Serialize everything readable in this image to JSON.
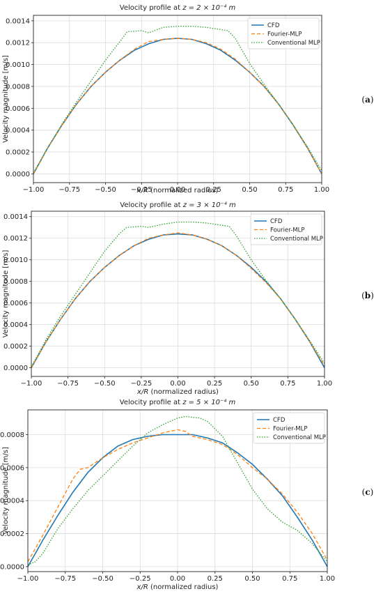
{
  "chart_data": [
    {
      "type": "line",
      "panel_label": "(a)",
      "title_prefix": "Velocity profile at ",
      "title_math": "z = 2 × 10⁻⁴ m",
      "xlabel_math": "x/R",
      "xlabel_rest": " (normalized radius)",
      "ylabel": "Velocity magnitude [m/s]",
      "xlim": [
        -1.0,
        1.0
      ],
      "ylim": [
        -8e-05,
        0.00145
      ],
      "xticks": [
        -1.0,
        -0.75,
        -0.5,
        -0.25,
        0.0,
        0.25,
        0.5,
        0.75,
        1.0
      ],
      "xtick_labels": [
        "−1.00",
        "−0.75",
        "−0.50",
        "−0.25",
        "0.00",
        "0.25",
        "0.50",
        "0.75",
        "1.00"
      ],
      "yticks": [
        0,
        0.0002,
        0.0004,
        0.0006,
        0.0008,
        0.001,
        0.0012,
        0.0014
      ],
      "ytick_labels": [
        "0.0000",
        "0.0002",
        "0.0004",
        "0.0006",
        "0.0008",
        "0.0010",
        "0.0012",
        "0.0014"
      ],
      "grid": true,
      "legend": "top-right",
      "series": [
        {
          "name": "CFD",
          "color": "#1f77b4",
          "style": "solid",
          "x": [
            -1.0,
            -0.9,
            -0.8,
            -0.7,
            -0.6,
            -0.5,
            -0.4,
            -0.3,
            -0.2,
            -0.1,
            0.0,
            0.1,
            0.2,
            0.3,
            0.4,
            0.5,
            0.6,
            0.7,
            0.8,
            0.9,
            1.0
          ],
          "y": [
            0.0,
            0.00024,
            0.00045,
            0.00064,
            0.0008,
            0.00093,
            0.00104,
            0.00113,
            0.00119,
            0.00123,
            0.00124,
            0.00123,
            0.00119,
            0.00113,
            0.00104,
            0.00093,
            0.0008,
            0.00064,
            0.00045,
            0.00024,
            0.0
          ]
        },
        {
          "name": "Fourier-MLP",
          "color": "#ff7f0e",
          "style": "dashed",
          "x": [
            -1.0,
            -0.9,
            -0.8,
            -0.7,
            -0.6,
            -0.5,
            -0.4,
            -0.3,
            -0.2,
            -0.1,
            0.0,
            0.1,
            0.2,
            0.3,
            0.4,
            0.5,
            0.6,
            0.7,
            0.8,
            0.9,
            1.0
          ],
          "y": [
            0.0,
            0.00024,
            0.00045,
            0.00064,
            0.0008,
            0.00093,
            0.00104,
            0.00114,
            0.00121,
            0.00123,
            0.00124,
            0.00123,
            0.0012,
            0.00114,
            0.00105,
            0.00093,
            0.0008,
            0.00064,
            0.00045,
            0.00024,
            0.0
          ]
        },
        {
          "name": "Conventional MLP",
          "color": "#2ca02c",
          "style": "dotted",
          "x": [
            -1.0,
            -0.9,
            -0.8,
            -0.7,
            -0.6,
            -0.5,
            -0.4,
            -0.35,
            -0.25,
            -0.2,
            -0.1,
            0.0,
            0.1,
            0.2,
            0.25,
            0.35,
            0.4,
            0.5,
            0.6,
            0.7,
            0.8,
            0.9,
            1.0
          ],
          "y": [
            1e-05,
            0.00024,
            0.00046,
            0.00066,
            0.00085,
            0.00104,
            0.00121,
            0.0013,
            0.00131,
            0.00129,
            0.00134,
            0.00135,
            0.00135,
            0.00134,
            0.00133,
            0.00131,
            0.00124,
            0.00101,
            0.00082,
            0.00064,
            0.00045,
            0.00025,
            3e-05
          ]
        }
      ]
    },
    {
      "type": "line",
      "panel_label": "(b)",
      "title_prefix": "Velocity profile at ",
      "title_math": "z = 3 × 10⁻⁴ m",
      "xlabel_math": "x/R",
      "xlabel_rest": " (normalized radius)",
      "ylabel": "Velocity magnitude [m/s]",
      "xlim": [
        -1.0,
        1.0
      ],
      "ylim": [
        -8e-05,
        0.00145
      ],
      "xticks": [
        -1.0,
        -0.75,
        -0.5,
        -0.25,
        0.0,
        0.25,
        0.5,
        0.75,
        1.0
      ],
      "xtick_labels": [
        "−1.00",
        "−0.75",
        "−0.50",
        "−0.25",
        "0.00",
        "0.25",
        "0.50",
        "0.75",
        "1.00"
      ],
      "yticks": [
        0,
        0.0002,
        0.0004,
        0.0006,
        0.0008,
        0.001,
        0.0012,
        0.0014
      ],
      "ytick_labels": [
        "0.0000",
        "0.0002",
        "0.0004",
        "0.0006",
        "0.0008",
        "0.0010",
        "0.0012",
        "0.0014"
      ],
      "grid": true,
      "legend": "top-right",
      "series": [
        {
          "name": "CFD",
          "color": "#1f77b4",
          "style": "solid",
          "x": [
            -1.0,
            -0.9,
            -0.8,
            -0.7,
            -0.6,
            -0.5,
            -0.4,
            -0.3,
            -0.2,
            -0.1,
            0.0,
            0.1,
            0.2,
            0.3,
            0.4,
            0.5,
            0.6,
            0.7,
            0.8,
            0.9,
            1.0
          ],
          "y": [
            0.0,
            0.00024,
            0.00045,
            0.00064,
            0.0008,
            0.00093,
            0.00104,
            0.00113,
            0.00119,
            0.00123,
            0.00124,
            0.00123,
            0.00119,
            0.00113,
            0.00104,
            0.00093,
            0.0008,
            0.00064,
            0.00045,
            0.00024,
            0.0
          ]
        },
        {
          "name": "Fourier-MLP",
          "color": "#ff7f0e",
          "style": "dashed",
          "x": [
            -1.0,
            -0.9,
            -0.8,
            -0.7,
            -0.6,
            -0.5,
            -0.4,
            -0.3,
            -0.2,
            -0.1,
            0.0,
            0.1,
            0.2,
            0.3,
            0.4,
            0.5,
            0.6,
            0.7,
            0.8,
            0.9,
            1.0
          ],
          "y": [
            0.0,
            0.00024,
            0.00045,
            0.00064,
            0.0008,
            0.00093,
            0.00104,
            0.00113,
            0.0012,
            0.00123,
            0.00125,
            0.00123,
            0.00119,
            0.00113,
            0.00104,
            0.00092,
            0.00079,
            0.00064,
            0.00045,
            0.00024,
            2e-05
          ]
        },
        {
          "name": "Conventional MLP",
          "color": "#2ca02c",
          "style": "dotted",
          "x": [
            -1.0,
            -0.9,
            -0.8,
            -0.7,
            -0.6,
            -0.5,
            -0.4,
            -0.35,
            -0.25,
            -0.2,
            -0.1,
            0.0,
            0.1,
            0.2,
            0.25,
            0.35,
            0.4,
            0.5,
            0.6,
            0.7,
            0.8,
            0.9,
            1.0
          ],
          "y": [
            1e-05,
            0.00026,
            0.00048,
            0.00068,
            0.00088,
            0.00108,
            0.00124,
            0.0013,
            0.00131,
            0.0013,
            0.00133,
            0.00135,
            0.00135,
            0.00134,
            0.00133,
            0.00131,
            0.00122,
            0.001,
            0.00081,
            0.00064,
            0.00045,
            0.00025,
            4e-05
          ]
        }
      ]
    },
    {
      "type": "line",
      "panel_label": "(c)",
      "title_prefix": "Velocity profile at ",
      "title_math": "z = 5 × 10⁻⁴ m",
      "xlabel_math": "x/R",
      "xlabel_rest": " (normalized radius)",
      "ylabel": "Velocity magnitude [m/s]",
      "xlim": [
        -1.0,
        1.0
      ],
      "ylim": [
        -3e-05,
        0.00095
      ],
      "xticks": [
        -1.0,
        -0.75,
        -0.5,
        -0.25,
        0.0,
        0.25,
        0.5,
        0.75,
        1.0
      ],
      "xtick_labels": [
        "−1.00",
        "−0.75",
        "−0.50",
        "−0.25",
        "0.00",
        "0.25",
        "0.50",
        "0.75",
        "1.00"
      ],
      "yticks": [
        0,
        0.0002,
        0.0004,
        0.0006,
        0.0008
      ],
      "ytick_labels": [
        "0.0000",
        "0.0002",
        "0.0004",
        "0.0006",
        "0.0008"
      ],
      "grid": true,
      "legend": "top-right",
      "series": [
        {
          "name": "CFD",
          "color": "#1f77b4",
          "style": "solid",
          "x": [
            -1.0,
            -0.9,
            -0.8,
            -0.7,
            -0.6,
            -0.5,
            -0.4,
            -0.3,
            -0.2,
            -0.1,
            0.0,
            0.1,
            0.2,
            0.3,
            0.4,
            0.5,
            0.6,
            0.7,
            0.8,
            0.9,
            1.0
          ],
          "y": [
            0.0,
            0.00016,
            0.00031,
            0.00045,
            0.00057,
            0.00066,
            0.00073,
            0.00077,
            0.00079,
            0.0008,
            0.0008,
            0.0008,
            0.00078,
            0.00075,
            0.00069,
            0.00062,
            0.00053,
            0.00043,
            0.0003,
            0.00016,
            0.0
          ]
        },
        {
          "name": "Fourier-MLP",
          "color": "#ff7f0e",
          "style": "dashed",
          "x": [
            -1.0,
            -0.9,
            -0.8,
            -0.7,
            -0.65,
            -0.6,
            -0.5,
            -0.4,
            -0.3,
            -0.2,
            -0.1,
            0.0,
            0.05,
            0.1,
            0.2,
            0.3,
            0.4,
            0.5,
            0.6,
            0.7,
            0.8,
            0.9,
            1.0
          ],
          "y": [
            3e-05,
            0.00019,
            0.00036,
            0.00053,
            0.00059,
            0.0006,
            0.00066,
            0.00071,
            0.00075,
            0.00078,
            0.00081,
            0.00083,
            0.00082,
            0.00079,
            0.00077,
            0.00074,
            0.00068,
            0.0006,
            0.00053,
            0.00044,
            0.00033,
            0.0002,
            4e-05
          ]
        },
        {
          "name": "Conventional MLP",
          "color": "#2ca02c",
          "style": "dotted",
          "x": [
            -1.0,
            -0.95,
            -0.9,
            -0.8,
            -0.7,
            -0.6,
            -0.5,
            -0.4,
            -0.3,
            -0.2,
            -0.1,
            0.0,
            0.05,
            0.15,
            0.2,
            0.3,
            0.4,
            0.5,
            0.6,
            0.7,
            0.8,
            0.9,
            1.0
          ],
          "y": [
            1e-05,
            3e-05,
            8e-05,
            0.00023,
            0.00035,
            0.00046,
            0.00055,
            0.00064,
            0.00073,
            0.00081,
            0.00086,
            0.0009,
            0.00091,
            0.0009,
            0.00088,
            0.00079,
            0.00063,
            0.00047,
            0.00035,
            0.00027,
            0.00022,
            0.00014,
            3e-05
          ]
        }
      ]
    }
  ]
}
